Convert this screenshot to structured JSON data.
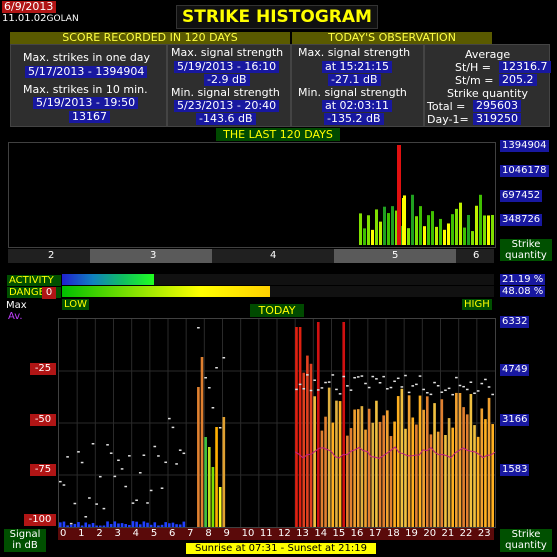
{
  "header": {
    "date": "6/9/2013",
    "version": "11.01.02",
    "station": "GOLAN",
    "title": "STRIKE HISTOGRAM"
  },
  "score": {
    "band": "SCORE RECORDED IN 120 DAYS",
    "max_day_label": "Max. strikes in one day",
    "max_day_value": "5/17/2013 - 1394904",
    "max_10_label": "Max. strikes in 10 min.",
    "max_10_date": "5/19/2013 - 19:50",
    "max_10_value": "13167",
    "max_sig_label": "Max. signal strength",
    "max_sig_date": "5/19/2013 - 16:10",
    "max_sig_value": "-2.9 dB",
    "min_sig_label": "Min. signal strength",
    "min_sig_date": "5/23/2013 - 20:40",
    "min_sig_value": "-143.6 dB"
  },
  "today_obs": {
    "band": "TODAY'S OBSERVATION",
    "max_sig_label": "Max. signal strength",
    "max_sig_time": "at 15:21:15",
    "max_sig_value": "-27.1 dB",
    "min_sig_label": "Min. signal strength",
    "min_sig_time": "at 02:03:11",
    "min_sig_value": "-135.2 dB",
    "avg_label": "Average",
    "sth_label": "St/H =",
    "sth_value": "12316.7",
    "stm_label": "St/m =",
    "stm_value": "205.2",
    "qty_label": "Strike quantity",
    "total_label": "Total =",
    "total_value": "295603",
    "day1_label": "Day-1=",
    "day1_value": "319250"
  },
  "last120": {
    "band": "THE LAST 120 DAYS",
    "y_ticks": [
      "1394904",
      "1046178",
      "697452",
      "348726"
    ],
    "x_ticks": [
      "2",
      "3",
      "4",
      "5",
      "6"
    ],
    "strike_qty_label": [
      "Strike",
      "quantity"
    ]
  },
  "levels": {
    "activity_label": "ACTIVITY",
    "activity_value": "21.19 %",
    "activity_fraction": 0.2119,
    "danger_label": "DANGER",
    "danger_value": "48.08 %",
    "danger_fraction": 0.4808,
    "low_label": "LOW",
    "high_label": "HIGH"
  },
  "today": {
    "band": "TODAY",
    "legend_max": "Max",
    "legend_av": "Av.",
    "y_left": [
      "0",
      "-25",
      "-50",
      "-75",
      "-100"
    ],
    "y_right": [
      "6332",
      "4749",
      "3166",
      "1583"
    ],
    "hours": [
      "0",
      "1",
      "2",
      "3",
      "4",
      "5",
      "6",
      "7",
      "8",
      "9",
      "10",
      "11",
      "12",
      "13",
      "14",
      "15",
      "16",
      "17",
      "18",
      "19",
      "20",
      "21",
      "22",
      "23"
    ],
    "signal_label": [
      "Signal",
      "in dB"
    ],
    "strike_qty_label": [
      "Strike",
      "quantity"
    ],
    "sunrise": "Sunrise at 07:31  -  Sunset at 21:19"
  },
  "colors": {
    "panel": "#2e2e2e",
    "value_bg": "#1818a0",
    "band": "#5a5a00",
    "green_label": "#005000",
    "red_label": "#b01515",
    "title_text": "#ffff00"
  }
}
